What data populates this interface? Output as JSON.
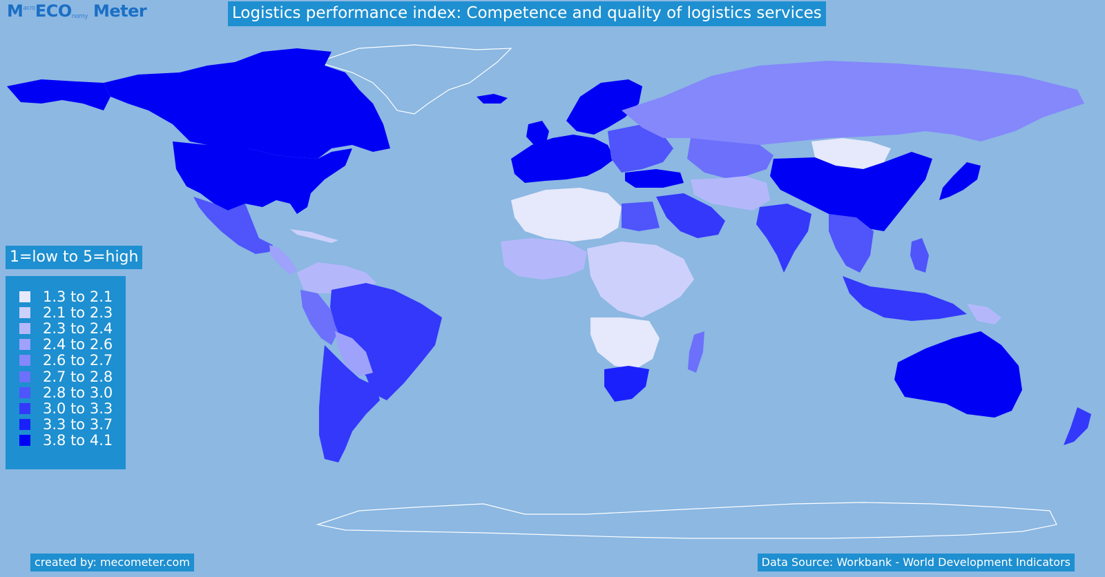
{
  "logo": {
    "part1": "M",
    "small1": "acro",
    "part2": "ECO",
    "small2": "nomy",
    "part3": "Meter"
  },
  "title": "Logistics performance index: Competence and quality of logistics services",
  "scale_label": "1=low to 5=high",
  "legend": [
    {
      "label": "1.3 to 2.1",
      "color": "#e6e8fb"
    },
    {
      "label": "2.1 to 2.3",
      "color": "#cdd0fb"
    },
    {
      "label": "2.3 to 2.4",
      "color": "#b4b8fb"
    },
    {
      "label": "2.4 to 2.6",
      "color": "#9ea2fb"
    },
    {
      "label": "2.6 to 2.7",
      "color": "#8488fb"
    },
    {
      "label": "2.7 to 2.8",
      "color": "#6c70fb"
    },
    {
      "label": "2.8 to 3.0",
      "color": "#4f54fb"
    },
    {
      "label": "3.0 to 3.3",
      "color": "#3338fb"
    },
    {
      "label": "3.3 to 3.7",
      "color": "#1a20fb"
    },
    {
      "label": "3.8 to 4.1",
      "color": "#0000f5"
    }
  ],
  "footer": {
    "created_by": "created by: mecometer.com",
    "source": "Data Source: Workbank - World Development Indicators"
  },
  "colors": {
    "ocean": "#8cb8e2",
    "label_bg": "#1e8fd0",
    "no_data_outline": "#ffffff"
  }
}
